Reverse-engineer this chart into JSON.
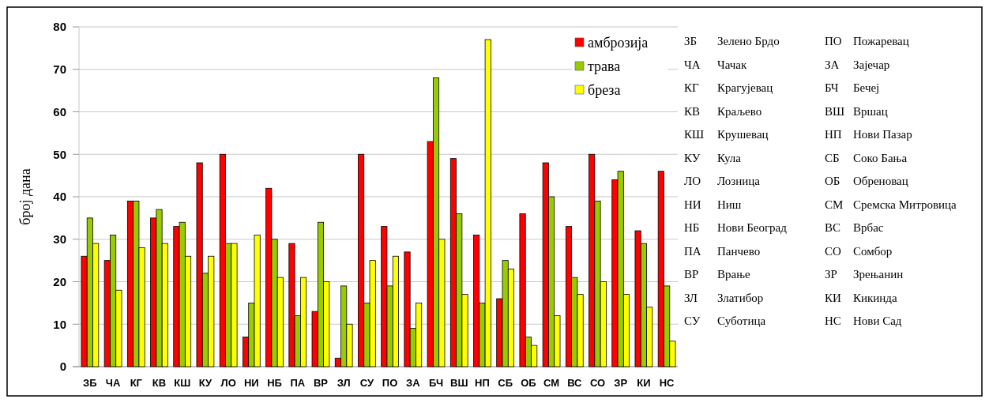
{
  "chart_data": {
    "type": "bar",
    "ylabel": "број дана",
    "categories": [
      "ЗБ",
      "ЧА",
      "КГ",
      "КВ",
      "КШ",
      "КУ",
      "ЛО",
      "НИ",
      "НБ",
      "ПА",
      "ВР",
      "ЗЛ",
      "СУ",
      "ПО",
      "ЗА",
      "БЧ",
      "ВШ",
      "НП",
      "СБ",
      "ОБ",
      "СМ",
      "ВС",
      "СО",
      "ЗР",
      "КИ",
      "НС"
    ],
    "series": [
      {
        "name": "амброзија",
        "color": "#ff0000",
        "values": [
          26,
          25,
          39,
          35,
          33,
          48,
          50,
          7,
          42,
          29,
          13,
          2,
          50,
          33,
          27,
          53,
          49,
          31,
          16,
          36,
          48,
          33,
          50,
          44,
          32,
          46
        ]
      },
      {
        "name": "трава",
        "color": "#99cc00",
        "values": [
          35,
          31,
          39,
          37,
          34,
          22,
          29,
          15,
          30,
          12,
          34,
          19,
          15,
          19,
          9,
          68,
          36,
          15,
          25,
          7,
          40,
          21,
          39,
          46,
          29,
          19
        ]
      },
      {
        "name": "бреза",
        "color": "#ffff00",
        "values": [
          29,
          18,
          28,
          29,
          26,
          26,
          29,
          31,
          21,
          21,
          20,
          10,
          25,
          26,
          15,
          30,
          17,
          77,
          23,
          5,
          12,
          17,
          20,
          17,
          14,
          6
        ]
      }
    ],
    "ylim": [
      0,
      80
    ],
    "yticks": [
      0,
      10,
      20,
      30,
      40,
      50,
      60,
      70,
      80
    ],
    "grid": "y",
    "legend": "top right",
    "annotations": [
      "ЗБ Зелено Брдо",
      "ЧА Чачак",
      "КГ Крагујевац",
      "КВ Краљево",
      "КШ Крушевац",
      "КУ Кула",
      "ЛО Лозница",
      "НИ Ниш",
      "НБ Нови Београд",
      "ПА Панчево",
      "ВР Врање",
      "ЗЛ Златибор",
      "СУ Суботица",
      "ПО Пожаревац",
      "ЗА Зајечар",
      "БЧ Бечеј",
      "ВШ Вршац",
      "НП Нови Пазар",
      "СБ Соко Бања",
      "ОБ Обреновац",
      "СМ Сремска Митровица",
      "ВС Врбас",
      "СО Сомбор",
      "ЗР Зрењанин",
      "КИ Кикинда",
      "НС Нови Сад"
    ]
  }
}
